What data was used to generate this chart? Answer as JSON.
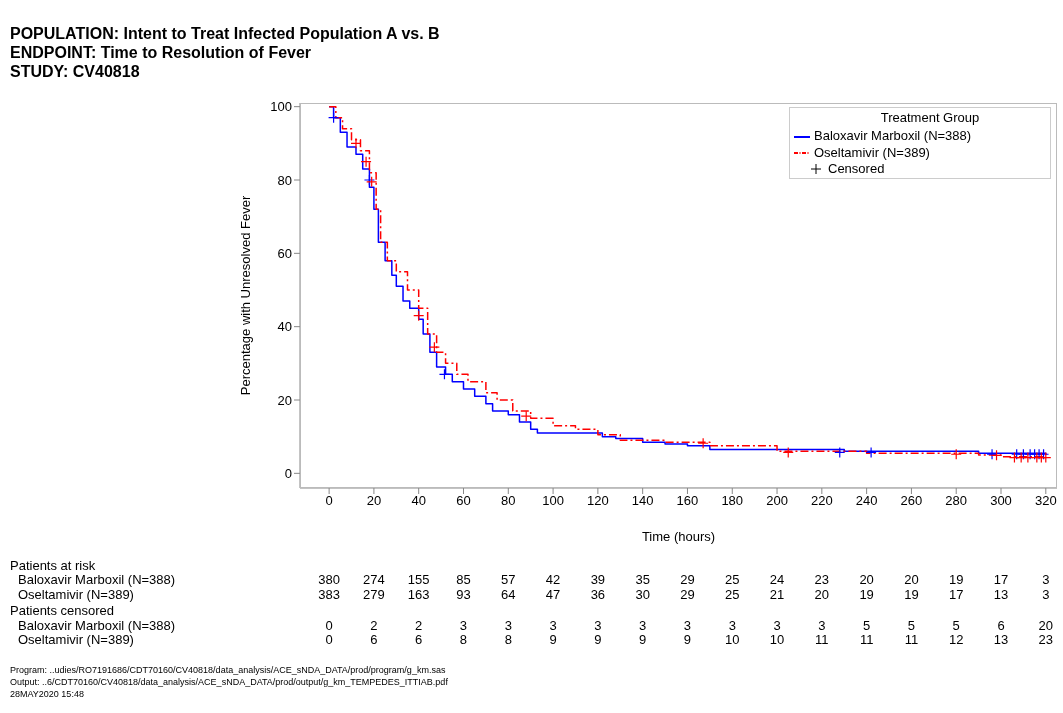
{
  "chart_data": {
    "type": "step",
    "title": "POPULATION: Intent to Treat Infected Population A vs. B\nENDPOINT: Time to Resolution of Fever\nSTUDY: CV40818",
    "xlabel": "Time (hours)",
    "ylabel": "Percentage with Unresolved Fever",
    "legend_title": "Treatment Group",
    "legend": "top right",
    "grid": false,
    "xlim": [
      -13,
      325
    ],
    "xticks": [
      0,
      20,
      40,
      60,
      80,
      100,
      120,
      140,
      160,
      180,
      200,
      220,
      240,
      260,
      280,
      300,
      320
    ],
    "ylim": [
      -4,
      101
    ],
    "yticks": [
      0,
      20,
      40,
      60,
      80,
      100
    ],
    "series": [
      {
        "name": "Baloxavir Marboxil (N=388)",
        "color": "#0000ff",
        "line_style": "solid",
        "x": [
          0,
          2,
          5,
          8,
          12,
          15,
          18,
          20,
          22,
          25,
          28,
          30,
          33,
          36,
          40,
          42,
          45,
          48,
          52,
          55,
          60,
          65,
          70,
          73,
          80,
          85,
          90,
          93,
          100,
          118,
          122,
          128,
          140,
          150,
          160,
          170,
          200,
          230,
          290,
          320
        ],
        "values": [
          100,
          97,
          93,
          89,
          87,
          83,
          78,
          72,
          63,
          58,
          54,
          51,
          47,
          45,
          42,
          38,
          33,
          29,
          27,
          25,
          23,
          21,
          19,
          17,
          16,
          14,
          12,
          11,
          11,
          11,
          10,
          9.5,
          8.5,
          8,
          7.5,
          6.5,
          6.5,
          6,
          5.5,
          5
        ]
      },
      {
        "name": "Oseltamivir (N=389)",
        "color": "#ff0000",
        "line_style": "dashed",
        "x": [
          0,
          3,
          6,
          10,
          14,
          18,
          21,
          23,
          26,
          30,
          35,
          40,
          44,
          48,
          52,
          57,
          62,
          70,
          75,
          82,
          90,
          100,
          110,
          120,
          130,
          150,
          170,
          200,
          240,
          290,
          300,
          320
        ],
        "values": [
          100,
          97,
          94,
          91,
          88,
          82,
          72,
          63,
          58,
          55,
          50,
          45,
          38,
          33,
          30,
          27,
          25,
          22,
          20,
          17,
          15,
          13,
          12,
          10.5,
          9,
          8.5,
          7.5,
          6,
          5.5,
          5,
          4.5,
          4.5
        ]
      },
      {
        "type": "scatter",
        "marker": "cross",
        "color": "#0000ff",
        "x": [
          2,
          18,
          51.5,
          228,
          242,
          296,
          307,
          310,
          313,
          315,
          317,
          319
        ],
        "values": [
          97,
          80,
          27,
          5.7,
          5.7,
          5.2,
          5.2,
          5.2,
          5.2,
          5.2,
          5.2,
          5.2
        ]
      },
      {
        "type": "scatter",
        "marker": "cross",
        "color": "#ff0000",
        "x": [
          12,
          16.5,
          19,
          40,
          47,
          88,
          167,
          205,
          280,
          298,
          306,
          309,
          312,
          316,
          318,
          320
        ],
        "values": [
          90,
          85,
          79.5,
          43,
          34.4,
          15.6,
          8.2,
          5.7,
          5.2,
          4.9,
          4.3,
          4.3,
          4.3,
          4.3,
          4.3,
          4.3
        ]
      }
    ],
    "annotations": [
      "Patients at risk",
      "Baloxavir Marboxil (N=388)",
      "380 274 155 85 57 42 39 35 29 25 24 23 20 20 19 17 3",
      "Oseltamivir (N=389)",
      "383 279 163 93 64 47 36 30 29 25 21 20 19 19 17 13 3",
      "Patients censored",
      "Baloxavir Marboxil (N=388)",
      "0 2 2 3 3 3 3 3 3 3 3 3 5 5 5 6 20",
      "Oseltamivir (N=389)",
      "0 6 6 8 8 9 9 9 9 10 10 11 11 11 12 13 23",
      "Program: ..udies/RO7191686/CDT70160/CV40818/data_analysis/ACE_sNDA_DATA/prod/program/g_km.sas",
      "Output: ..6/CDT70160/CV40818/data_analysis/ACE_sNDA_DATA/prod/output/g_km_TEMPEDES_ITTIAB.pdf",
      "28MAY2020 15:48",
      "Censored"
    ]
  }
}
